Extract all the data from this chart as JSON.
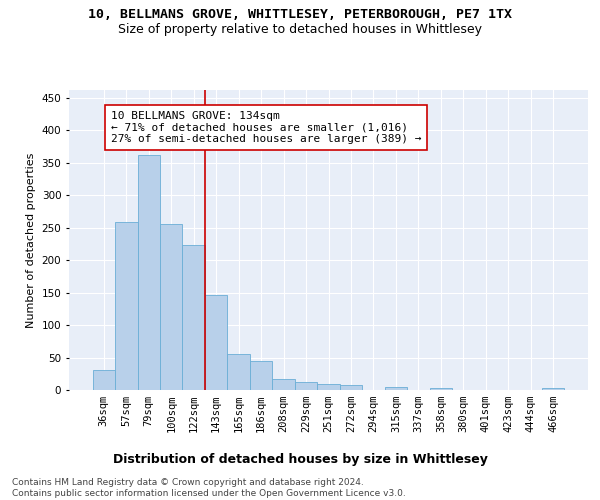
{
  "title_line1": "10, BELLMANS GROVE, WHITTLESEY, PETERBOROUGH, PE7 1TX",
  "title_line2": "Size of property relative to detached houses in Whittlesey",
  "xlabel": "Distribution of detached houses by size in Whittlesey",
  "ylabel": "Number of detached properties",
  "categories": [
    "36sqm",
    "57sqm",
    "79sqm",
    "100sqm",
    "122sqm",
    "143sqm",
    "165sqm",
    "186sqm",
    "208sqm",
    "229sqm",
    "251sqm",
    "272sqm",
    "294sqm",
    "315sqm",
    "337sqm",
    "358sqm",
    "380sqm",
    "401sqm",
    "423sqm",
    "444sqm",
    "466sqm"
  ],
  "values": [
    31,
    258,
    362,
    255,
    224,
    147,
    56,
    44,
    17,
    12,
    9,
    7,
    0,
    5,
    0,
    3,
    0,
    0,
    0,
    0,
    3
  ],
  "bar_color": "#b8d0ea",
  "bar_edge_color": "#6aaed6",
  "background_color": "#e8eef8",
  "grid_color": "#ffffff",
  "annotation_line1": "10 BELLMANS GROVE: 134sqm",
  "annotation_line2": "← 71% of detached houses are smaller (1,016)",
  "annotation_line3": "27% of semi-detached houses are larger (389) →",
  "vline_x_index": 4,
  "vline_color": "#cc0000",
  "annotation_box_color": "#ffffff",
  "annotation_box_edge": "#cc0000",
  "ylim": [
    0,
    462
  ],
  "yticks": [
    0,
    50,
    100,
    150,
    200,
    250,
    300,
    350,
    400,
    450
  ],
  "footnote": "Contains HM Land Registry data © Crown copyright and database right 2024.\nContains public sector information licensed under the Open Government Licence v3.0.",
  "title_fontsize": 9.5,
  "subtitle_fontsize": 9,
  "xlabel_fontsize": 9,
  "ylabel_fontsize": 8,
  "tick_fontsize": 7.5,
  "annot_fontsize": 8,
  "footnote_fontsize": 6.5
}
